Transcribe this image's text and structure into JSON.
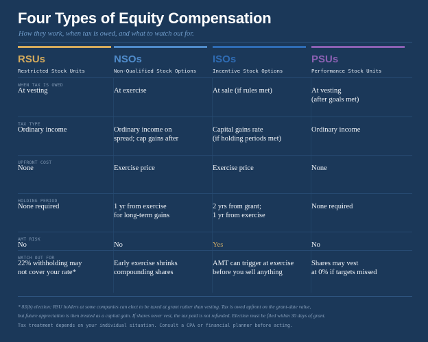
{
  "title": "Four Types of Equity Compensation",
  "subtitle": "How they work, when tax is owed, and what to watch out for.",
  "columns": [
    {
      "abbr": "RSUs",
      "full": "Restricted Stock Units",
      "color": "#d4aa5c"
    },
    {
      "abbr": "NSOs",
      "full": "Non-Qualified Stock Options",
      "color": "#4f8bca"
    },
    {
      "abbr": "ISOs",
      "full": "Incentive Stock Options",
      "color": "#2f6cb4"
    },
    {
      "abbr": "PSUs",
      "full": "Performance Stock Units",
      "color": "#8a60b2"
    }
  ],
  "rows": [
    {
      "label": "WHEN TAX IS OWED",
      "values": [
        "At vesting",
        "At exercise",
        "At sale (if rules met)",
        "At vesting\n(after goals met)"
      ]
    },
    {
      "label": "TAX TYPE",
      "values": [
        "Ordinary income",
        "Ordinary income on\nspread; cap gains after",
        "Capital gains rate\n(if holding periods met)",
        "Ordinary income"
      ]
    },
    {
      "label": "UPFRONT COST",
      "values": [
        "None",
        "Exercise price",
        "Exercise price",
        "None"
      ]
    },
    {
      "label": "HOLDING PERIOD",
      "values": [
        "None required",
        "1 yr from exercise\nfor long-term gains",
        "2 yrs from grant;\n1 yr from exercise",
        "None required"
      ]
    },
    {
      "label": "AMT RISK",
      "values": [
        "No",
        "No",
        "Yes",
        "No"
      ]
    },
    {
      "label": "WATCH OUT FOR",
      "values": [
        "22% withholding may\nnot cover your rate*",
        "Early exercise shrinks\ncompounding shares",
        "AMT can trigger at exercise\nbefore you sell anything",
        "Shares may vest\nat 0% if targets missed"
      ]
    }
  ],
  "highlight_color": "#c9a867",
  "footnote": [
    "* 83(b) election: RSU holders at some companies can elect to be taxed at grant rather than vesting. Tax is owed upfront on the grant-date value,",
    " but future appreciation is then treated as a capital gain. If shares never vest, the tax paid is not refunded. Election must be filed within 30 days of grant."
  ],
  "disclaimer": "Tax treatment depends on your individual situation. Consult a CPA or financial planner before acting."
}
